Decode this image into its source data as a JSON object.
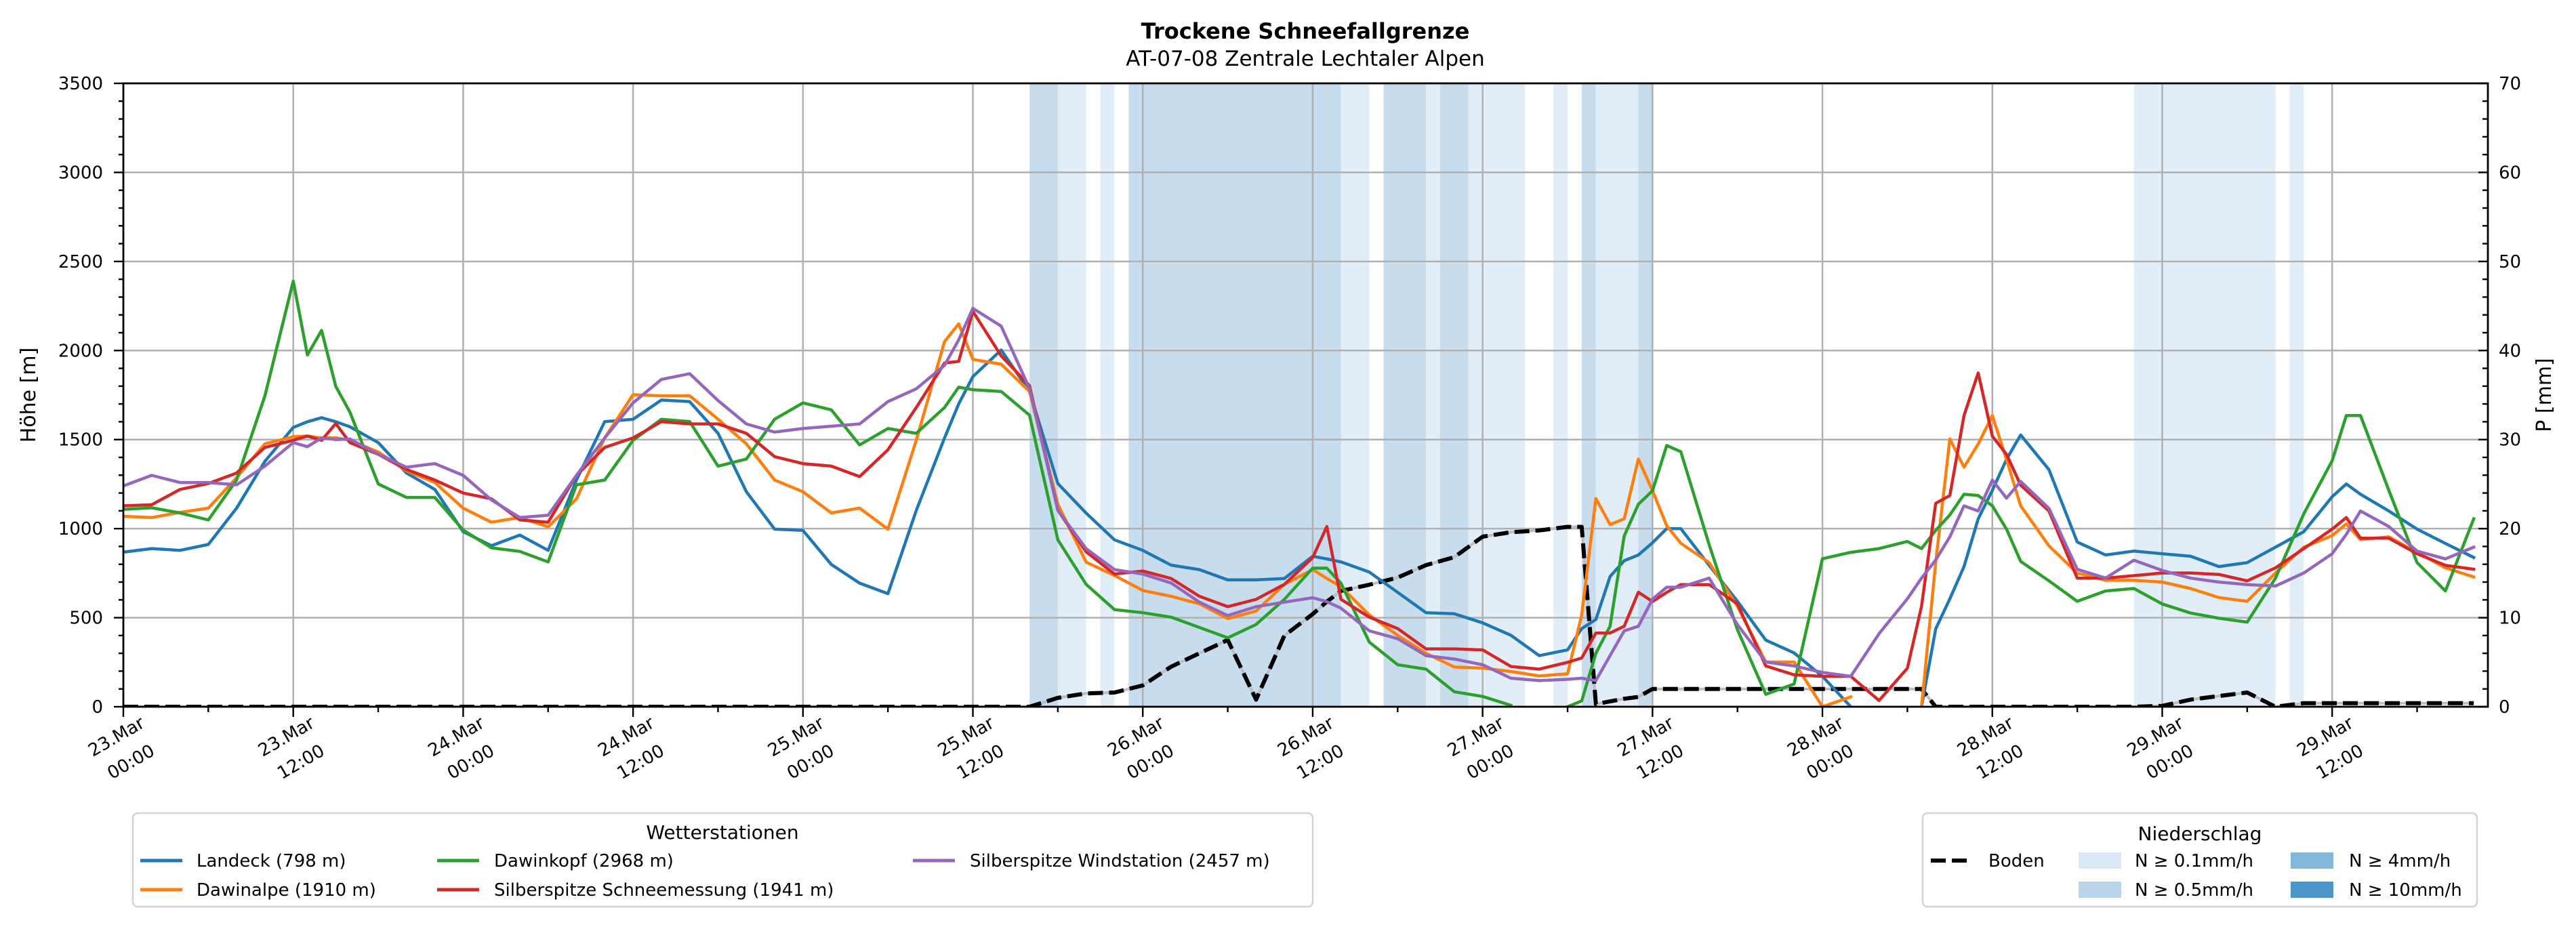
{
  "chart_data": {
    "type": "line",
    "title": "Trockene Schneefallgrenze",
    "subtitle": "AT-07-08 Zentrale Lechtaler Alpen",
    "xlabel": "",
    "ylabel": "Höhe [m]",
    "y2label": "P [mm]",
    "xlim": [
      0,
      167
    ],
    "ylim": [
      0,
      3500
    ],
    "y2lim": [
      0,
      70
    ],
    "grid": true,
    "yticks": [
      0,
      500,
      1000,
      1500,
      2000,
      2500,
      3000,
      3500
    ],
    "y2ticks": [
      0,
      10,
      20,
      30,
      40,
      50,
      60,
      70
    ],
    "xticks": [
      {
        "hours": 0,
        "date": "23.Mar",
        "time": "00:00"
      },
      {
        "hours": 12,
        "date": "23.Mar",
        "time": "12:00"
      },
      {
        "hours": 24,
        "date": "24.Mar",
        "time": "00:00"
      },
      {
        "hours": 36,
        "date": "24.Mar",
        "time": "12:00"
      },
      {
        "hours": 48,
        "date": "25.Mar",
        "time": "00:00"
      },
      {
        "hours": 60,
        "date": "25.Mar",
        "time": "12:00"
      },
      {
        "hours": 72,
        "date": "26.Mar",
        "time": "00:00"
      },
      {
        "hours": 84,
        "date": "26.Mar",
        "time": "12:00"
      },
      {
        "hours": 96,
        "date": "27.Mar",
        "time": "00:00"
      },
      {
        "hours": 108,
        "date": "27.Mar",
        "time": "12:00"
      },
      {
        "hours": 120,
        "date": "28.Mar",
        "time": "00:00"
      },
      {
        "hours": 132,
        "date": "28.Mar",
        "time": "12:00"
      },
      {
        "hours": 144,
        "date": "29.Mar",
        "time": "00:00"
      },
      {
        "hours": 156,
        "date": "29.Mar",
        "time": "12:00"
      }
    ],
    "x_hours": [
      0,
      2,
      4,
      6,
      8,
      10,
      12,
      13,
      14,
      15,
      16,
      18,
      20,
      22,
      24,
      26,
      28,
      30,
      32,
      34,
      36,
      38,
      40,
      42,
      44,
      46,
      48,
      50,
      52,
      54,
      56,
      58,
      59,
      60,
      62,
      64,
      66,
      68,
      70,
      72,
      74,
      76,
      78,
      80,
      82,
      84,
      85,
      86,
      88,
      90,
      92,
      94,
      96,
      98,
      100,
      102,
      103,
      104,
      105,
      106,
      107,
      108,
      109,
      110,
      112,
      114,
      116,
      118,
      120,
      122,
      124,
      126,
      127,
      128,
      129,
      130,
      131,
      132,
      133,
      134,
      136,
      138,
      140,
      142,
      144,
      146,
      148,
      150,
      152,
      154,
      156,
      157,
      158,
      160,
      162,
      164,
      166
    ],
    "series": [
      {
        "name": "Landeck (798 m)",
        "color": "#1f77b4",
        "values": [
          868,
          888,
          878,
          911,
          1115,
          1378,
          1568,
          1600,
          1623,
          1600,
          1572,
          1483,
          1312,
          1220,
          983,
          904,
          964,
          878,
          1273,
          1601,
          1614,
          1722,
          1713,
          1535,
          1207,
          997,
          990,
          799,
          694,
          635,
          1102,
          1509,
          1700,
          1853,
          2003,
          1770,
          1253,
          1087,
          937,
          878,
          795,
          770,
          712,
          712,
          720,
          845,
          830,
          813,
          756,
          642,
          528,
          522,
          471,
          401,
          287,
          319,
          439,
          490,
          731,
          820,
          852,
          921,
          1000,
          1000,
          794,
          592,
          374,
          302,
          171,
          0,
          null,
          null,
          0,
          437,
          606,
          787,
          1055,
          1215,
          1389,
          1526,
          1331,
          925,
          852,
          874,
          859,
          845,
          787,
          809,
          896,
          983,
          1179,
          1251,
          1193,
          1099,
          997,
          917,
          838
        ]
      },
      {
        "name": "Dawinalpe (1910 m)",
        "color": "#ff7f0e",
        "values": [
          1069,
          1062,
          1091,
          1115,
          1286,
          1476,
          1516,
          1520,
          1509,
          1510,
          1496,
          1430,
          1325,
          1259,
          1115,
          1036,
          1062,
          1010,
          1167,
          1509,
          1752,
          1746,
          1746,
          1614,
          1476,
          1273,
          1207,
          1088,
          1115,
          997,
          1496,
          2050,
          2150,
          1950,
          1923,
          1770,
          1137,
          812,
          737,
          653,
          620,
          578,
          495,
          537,
          687,
          770,
          720,
          674,
          515,
          401,
          300,
          223,
          217,
          198,
          173,
          185,
          515,
          1169,
          1023,
          1055,
          1391,
          1213,
          1016,
          918,
          809,
          563,
          251,
          251,
          0,
          55,
          null,
          null,
          0,
          809,
          1504,
          1345,
          1475,
          1635,
          1388,
          1128,
          903,
          751,
          710,
          710,
          700,
          664,
          613,
          592,
          751,
          896,
          961,
          1026,
          939,
          954,
          867,
          780,
          729
        ]
      },
      {
        "name": "Dawinkopf (2968 m)",
        "color": "#2ca02c",
        "values": [
          1108,
          1117,
          1088,
          1049,
          1273,
          1746,
          2390,
          1975,
          2113,
          1799,
          1654,
          1251,
          1175,
          1175,
          992,
          892,
          872,
          813,
          1246,
          1273,
          1496,
          1614,
          1601,
          1351,
          1391,
          1614,
          1706,
          1667,
          1470,
          1562,
          1535,
          1680,
          1794,
          1780,
          1770,
          1637,
          937,
          687,
          545,
          528,
          503,
          445,
          387,
          462,
          603,
          778,
          778,
          693,
          363,
          236,
          211,
          84,
          58,
          8,
          null,
          0,
          33,
          300,
          452,
          959,
          1137,
          1213,
          1467,
          1432,
          910,
          432,
          70,
          128,
          831,
          867,
          888,
          928,
          888,
          990,
          1077,
          1193,
          1186,
          1128,
          997,
          816,
          707,
          592,
          650,
          664,
          577,
          526,
          497,
          475,
          722,
          1084,
          1381,
          1635,
          1635,
          1215,
          809,
          650,
          1055
        ]
      },
      {
        "name": "Silberspitze Schneemessung (1941 m)",
        "color": "#d62728",
        "values": [
          1128,
          1134,
          1220,
          1253,
          1312,
          1456,
          1496,
          1520,
          1496,
          1590,
          1483,
          1417,
          1332,
          1273,
          1200,
          1167,
          1049,
          1036,
          1299,
          1456,
          1509,
          1601,
          1588,
          1588,
          1535,
          1404,
          1365,
          1351,
          1292,
          1443,
          1680,
          1930,
          1939,
          2220,
          1970,
          1803,
          1103,
          870,
          745,
          762,
          720,
          620,
          562,
          603,
          687,
          837,
          1012,
          603,
          503,
          439,
          325,
          325,
          319,
          226,
          211,
          249,
          274,
          414,
          414,
          452,
          643,
          591,
          642,
          686,
          686,
          577,
          229,
          179,
          171,
          171,
          35,
          216,
          564,
          1142,
          1186,
          1635,
          1874,
          1519,
          1417,
          1244,
          1099,
          722,
          722,
          736,
          751,
          751,
          743,
          707,
          780,
          888,
          997,
          1062,
          946,
          946,
          859,
          794,
          772
        ]
      },
      {
        "name": "Silberspitze Windstation (2457 m)",
        "color": "#9467bd",
        "values": [
          1240,
          1299,
          1259,
          1259,
          1246,
          1351,
          1483,
          1460,
          1509,
          1500,
          1503,
          1417,
          1345,
          1365,
          1299,
          1161,
          1062,
          1075,
          1299,
          1509,
          1706,
          1838,
          1870,
          1719,
          1588,
          1542,
          1562,
          1575,
          1588,
          1713,
          1785,
          1917,
          2060,
          2237,
          2137,
          1787,
          1103,
          887,
          770,
          745,
          695,
          587,
          512,
          562,
          587,
          612,
          590,
          553,
          426,
          382,
          287,
          268,
          236,
          160,
          147,
          154,
          160,
          147,
          287,
          426,
          452,
          604,
          671,
          671,
          722,
          461,
          251,
          229,
          193,
          171,
          410,
          606,
          722,
          824,
          954,
          1128,
          1099,
          1273,
          1171,
          1265,
          1114,
          772,
          722,
          823,
          765,
          722,
          700,
          686,
          678,
          751,
          859,
          968,
          1099,
          1012,
          874,
          830,
          896
        ]
      }
    ],
    "ground": {
      "name": "Boden",
      "color": "#000000",
      "axis": "right",
      "values": [
        0,
        0,
        0,
        0,
        0,
        0,
        0,
        0,
        0,
        0,
        0,
        0,
        0,
        0,
        0,
        0,
        0,
        0,
        0,
        0,
        0,
        0,
        0,
        0,
        0,
        0,
        0,
        0,
        0,
        0,
        0,
        0,
        0,
        0,
        0,
        0,
        1.0,
        1.5,
        1.6,
        2.4,
        4.5,
        6.0,
        7.5,
        0.8,
        8.0,
        10.4,
        11.8,
        13.0,
        13.7,
        14.5,
        15.9,
        16.8,
        19.1,
        19.6,
        19.8,
        20.2,
        20.2,
        0.3,
        0.6,
        0.9,
        1.1,
        2.0,
        2.0,
        2.0,
        2.0,
        2.0,
        2.0,
        2.0,
        2.0,
        2.0,
        2.0,
        2.0,
        2.0,
        0,
        0,
        0,
        0,
        0,
        0,
        0,
        0,
        0,
        0,
        0,
        0.1,
        0.8,
        1.2,
        1.6,
        0,
        0.4,
        0.4,
        0.4,
        0.4,
        0.4,
        0.4,
        0.4,
        0.4
      ]
    },
    "precip_levels": [
      {
        "label": "N ≥ 0.1mm/h",
        "color": "#dae8f5"
      },
      {
        "label": "N ≥ 0.5mm/h",
        "color": "#b9d5ea"
      },
      {
        "label": "N ≥ 4mm/h",
        "color": "#82b8da"
      },
      {
        "label": "N ≥ 10mm/h",
        "color": "#4c97c9"
      }
    ],
    "precip_bands": [
      {
        "start_hour": 64,
        "end_hour": 66,
        "level": 1
      },
      {
        "start_hour": 66,
        "end_hour": 68,
        "level": 0
      },
      {
        "start_hour": 69,
        "end_hour": 70,
        "level": 0
      },
      {
        "start_hour": 71,
        "end_hour": 86,
        "level": 1
      },
      {
        "start_hour": 86,
        "end_hour": 88,
        "level": 0
      },
      {
        "start_hour": 89,
        "end_hour": 92,
        "level": 1
      },
      {
        "start_hour": 92,
        "end_hour": 93,
        "level": 0
      },
      {
        "start_hour": 93,
        "end_hour": 95,
        "level": 1
      },
      {
        "start_hour": 95,
        "end_hour": 99,
        "level": 0
      },
      {
        "start_hour": 101,
        "end_hour": 102,
        "level": 0
      },
      {
        "start_hour": 103,
        "end_hour": 104,
        "level": 1
      },
      {
        "start_hour": 104,
        "end_hour": 107,
        "level": 0
      },
      {
        "start_hour": 107,
        "end_hour": 108,
        "level": 1
      },
      {
        "start_hour": 142,
        "end_hour": 152,
        "level": 0
      },
      {
        "start_hour": 153,
        "end_hour": 154,
        "level": 0
      }
    ],
    "legend_titles": {
      "stations": "Wetterstationen",
      "precip": "Niederschlag"
    },
    "legend_placement": {
      "stations": "bottom-left",
      "precip": "bottom-right"
    }
  }
}
